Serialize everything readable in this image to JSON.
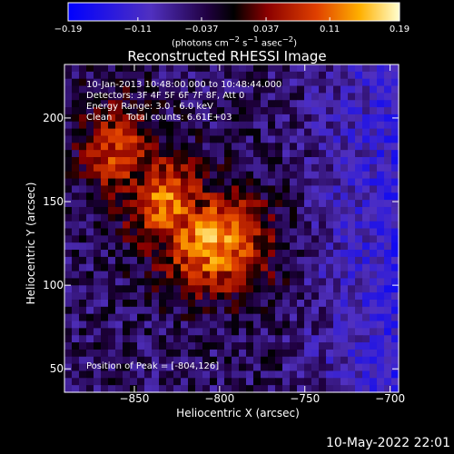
{
  "chart_data": {
    "type": "heatmap",
    "title": "Reconstructed RHESSI Image",
    "xlabel": "Heliocentric X (arcsec)",
    "ylabel": "Heliocentric Y (arcsec)",
    "xlim": [
      -891,
      -695
    ],
    "ylim": [
      36,
      232
    ],
    "x_ticks": [
      -850,
      -800,
      -750,
      -700
    ],
    "y_ticks": [
      50,
      100,
      150,
      200
    ],
    "x_tick_labels": [
      "−850",
      "−800",
      "−750",
      "−700"
    ],
    "y_tick_labels": [
      "50",
      "100",
      "150",
      "200"
    ],
    "colorbar": {
      "range": [
        -0.19,
        0.19
      ],
      "ticks": [
        -0.19,
        -0.11,
        -0.037,
        0.037,
        0.11,
        0.19
      ],
      "tick_labels": [
        "−0.19",
        "−0.11",
        "−0.037",
        "0.037",
        "0.11",
        "0.19"
      ],
      "units_prefix": "(photons cm",
      "units_exp1": "−2",
      "units_mid": " s",
      "units_exp2": "−1",
      "units_mid2": " asec",
      "units_exp3": "−2",
      "units_suffix": ")"
    },
    "peak": [
      -804,
      126
    ],
    "grid": false,
    "legend": "none"
  },
  "annotations": {
    "time_range": "10-Jan-2013 10:48:00.000 to 10:48:44.000",
    "detectors": "Detectors: 3F 4F 5F 6F 7F 8F, Att 0",
    "energy": "Energy Range: 3.0 - 6.0 keV",
    "clean_counts": "Clean     Total counts: 6.61E+03",
    "peak_position": "Position of Peak = [-804,126]"
  },
  "footer": {
    "timestamp": "10-May-2022 22:01"
  }
}
